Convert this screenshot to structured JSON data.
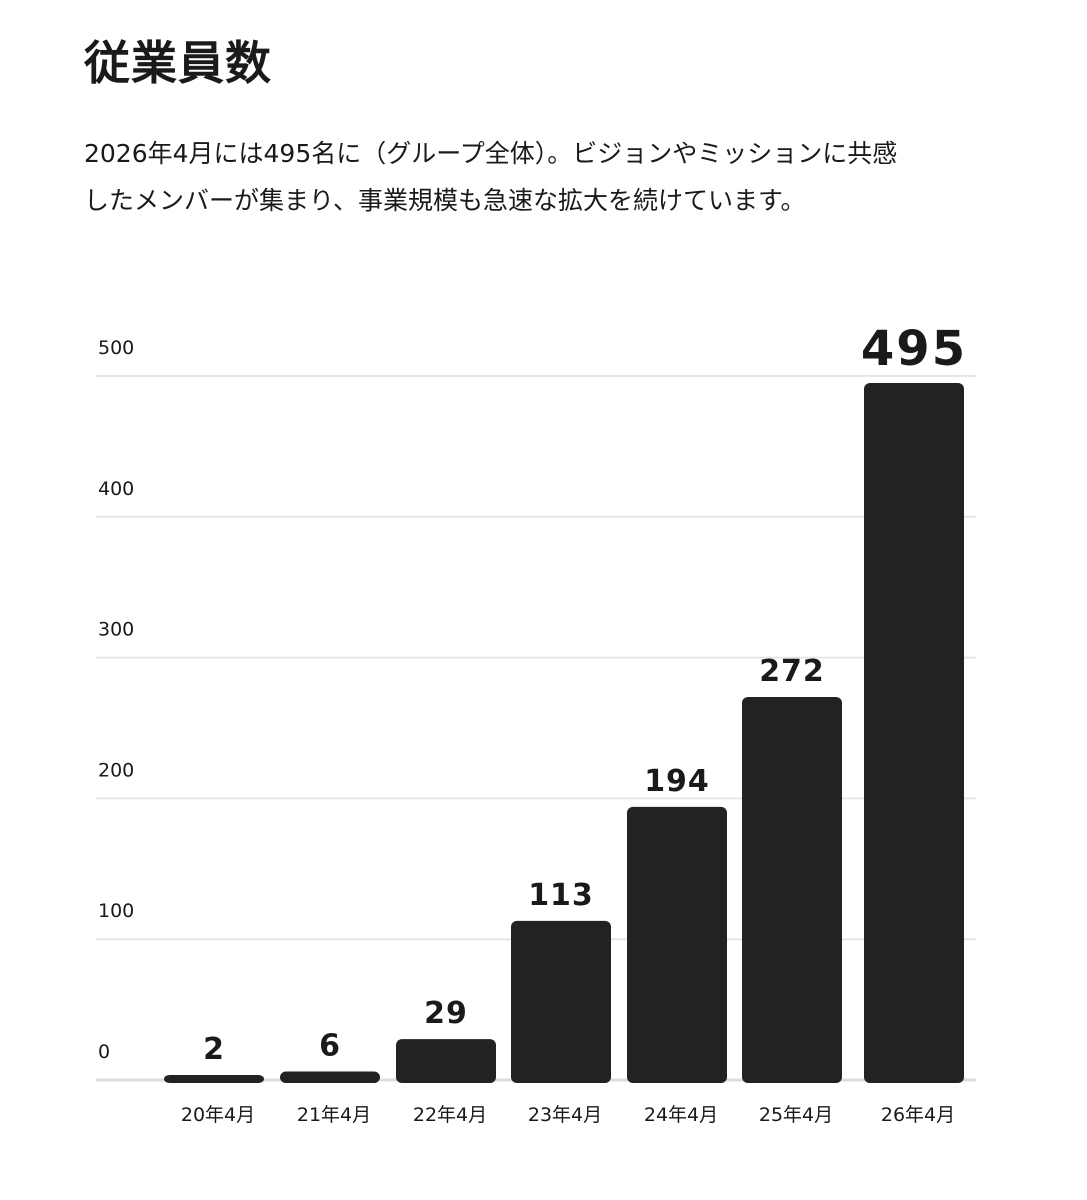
{
  "heading": "従業員数",
  "description": {
    "line1": "2026年4月には495名に（グループ全体）。ビジョンやミッションに共感",
    "line2": "したメンバーが集まり、事業規模も急速な拡大を続けています。"
  },
  "chart_data": {
    "type": "bar",
    "categories": [
      "20年4月",
      "21年4月",
      "22年4月",
      "23年4月",
      "24年4月",
      "25年4月",
      "26年4月"
    ],
    "values": [
      2,
      6,
      29,
      113,
      194,
      272,
      495
    ],
    "data_labels": [
      "2",
      "6",
      "29",
      "113",
      "194",
      "272",
      "495"
    ],
    "yticks": [
      0,
      100,
      200,
      300,
      400,
      500
    ],
    "ytick_labels": [
      "0",
      "100",
      "200",
      "300",
      "400",
      "500"
    ],
    "ylim": [
      0,
      500
    ],
    "grid": true,
    "highlight_last_label": true,
    "bar_color": "#222222",
    "grid_color": "#e6e6e6",
    "label_color": "#1a1a1a"
  }
}
